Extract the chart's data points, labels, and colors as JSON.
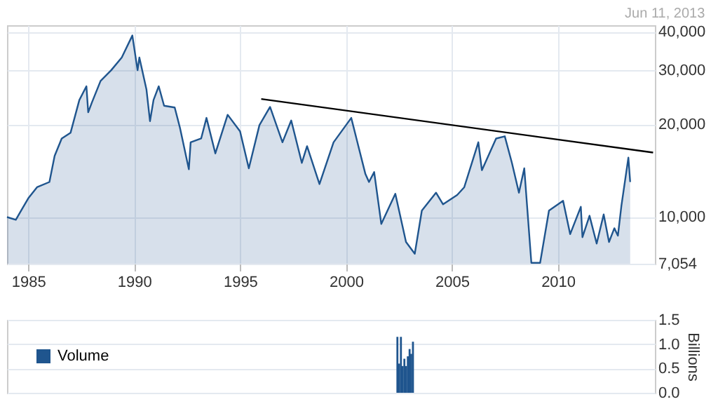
{
  "chart_data": [
    {
      "type": "area",
      "annotations": [
        "Jun 11, 2013"
      ],
      "xlim": [
        "1984-01",
        "2014-08"
      ],
      "xticks": [
        "1985",
        "1990",
        "1995",
        "2000",
        "2005",
        "2010"
      ],
      "ylim": [
        7054,
        42000
      ],
      "yticks": [
        {
          "value": 7054,
          "label": "7,054"
        },
        {
          "value": 10000,
          "label": "10,000"
        },
        {
          "value": 20000,
          "label": "20,000"
        },
        {
          "value": 30000,
          "label": "30,000"
        },
        {
          "value": 40000,
          "label": "40,000"
        }
      ],
      "log": "y",
      "grid": true,
      "series": [
        {
          "color": "#1f558e",
          "x": [
            "1984-01",
            "1984-06",
            "1984-09",
            "1985-01",
            "1985-06",
            "1986-01",
            "1986-04",
            "1986-08",
            "1987-01",
            "1987-06",
            "1987-10",
            "1987-11",
            "1988-01",
            "1988-06",
            "1988-12",
            "1989-06",
            "1989-12",
            "1990-03",
            "1990-04",
            "1990-08",
            "1990-10",
            "1990-12",
            "1991-03",
            "1991-06",
            "1991-12",
            "1992-03",
            "1992-08",
            "1992-09",
            "1993-03",
            "1993-06",
            "1993-11",
            "1994-06",
            "1995-01",
            "1995-06",
            "1995-12",
            "1996-06",
            "1997-01",
            "1997-06",
            "1997-12",
            "1998-03",
            "1998-10",
            "1999-06",
            "2000-04",
            "2000-12",
            "2001-02",
            "2001-05",
            "2001-09",
            "2002-05",
            "2002-11",
            "2003-04",
            "2003-08",
            "2004-04",
            "2004-08",
            "2005-04",
            "2005-08",
            "2006-04",
            "2006-06",
            "2007-02",
            "2007-07",
            "2007-11",
            "2008-03",
            "2008-06",
            "2008-10",
            "2009-03",
            "2009-08",
            "2010-04",
            "2010-08",
            "2011-02",
            "2011-03",
            "2011-07",
            "2011-11",
            "2012-03",
            "2012-06",
            "2012-09",
            "2012-11",
            "2013-01",
            "2013-05",
            "2013-06"
          ],
          "values": [
            10000,
            9800,
            10500,
            11500,
            12500,
            13000,
            15800,
            18000,
            18800,
            24000,
            26600,
            21900,
            23500,
            27700,
            30000,
            33000,
            38900,
            30000,
            33000,
            26000,
            20500,
            24000,
            26600,
            23000,
            22700,
            19500,
            14300,
            17500,
            18000,
            21000,
            16100,
            21500,
            19000,
            14400,
            19900,
            22800,
            17500,
            20600,
            15000,
            17000,
            12800,
            17500,
            21000,
            13800,
            13000,
            14000,
            9500,
            11900,
            8300,
            7600,
            10500,
            12000,
            11000,
            11800,
            12500,
            17500,
            14200,
            18000,
            18300,
            15000,
            12000,
            14400,
            7100,
            7100,
            10500,
            11300,
            8800,
            10800,
            8600,
            10100,
            8200,
            10200,
            8300,
            9200,
            8700,
            10900,
            15600,
            13000
          ]
        },
        {
          "type": "line",
          "color": "#000000",
          "x": [
            "1996-01",
            "2014-07"
          ],
          "values": [
            24200,
            16200
          ]
        }
      ]
    },
    {
      "type": "bar",
      "xlim": [
        "1984-01",
        "2014-08"
      ],
      "ylim": [
        0,
        1.5
      ],
      "yticks": [
        {
          "value": 0,
          "label": "0.0"
        },
        {
          "value": 0.5,
          "label": "0.5"
        },
        {
          "value": 1,
          "label": "1.0"
        },
        {
          "value": 1.5,
          "label": "1.5"
        }
      ],
      "ylabel": "Billions",
      "grid": true,
      "legend": "top left",
      "tick_labels": "y",
      "series": [
        {
          "name": "Volume",
          "color": "#1f558e",
          "x": [
            "2002-07",
            "2002-08",
            "2002-09",
            "2002-10",
            "2002-11",
            "2002-12",
            "2003-01",
            "2003-02",
            "2003-03",
            "2003-04"
          ],
          "values": [
            1.15,
            0.6,
            1.15,
            0.55,
            0.7,
            0.55,
            0.75,
            0.9,
            0.8,
            1.05
          ]
        }
      ]
    }
  ]
}
